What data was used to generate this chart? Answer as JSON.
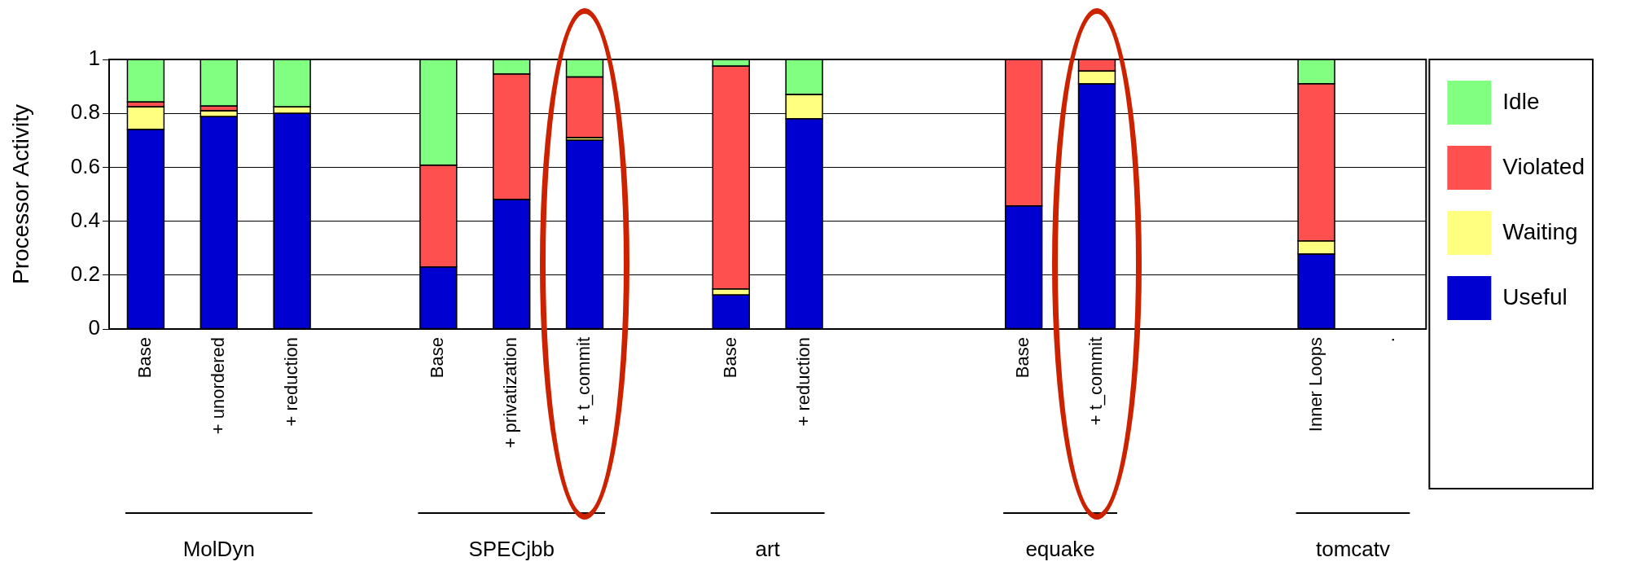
{
  "chart_data": {
    "type": "bar",
    "stacked": true,
    "ylabel": "Processor Activity",
    "categories": [
      "Base",
      "+ unordered",
      "+ reduction",
      null,
      "Base",
      "+ privatization",
      "+ t_commit",
      null,
      "Base",
      "+ reduction",
      null,
      null,
      "Base",
      "+ t_commit",
      null,
      null,
      "Inner Loops",
      "."
    ],
    "series": [
      {
        "name": "Useful",
        "color": "#0000d0",
        "values": [
          0.74,
          0.788,
          0.8,
          null,
          0.23,
          0.48,
          0.7,
          null,
          0.126,
          0.78,
          null,
          null,
          0.457,
          0.909,
          null,
          null,
          0.278,
          null
        ]
      },
      {
        "name": "Waiting",
        "color": "#ffff80",
        "values": [
          0.084,
          0.022,
          0.024,
          null,
          0,
          0,
          0.01,
          null,
          0.023,
          0.09,
          null,
          null,
          0,
          0.048,
          null,
          null,
          0.049,
          null
        ]
      },
      {
        "name": "Violated",
        "color": "#ff5050",
        "values": [
          0.018,
          0.017,
          0,
          null,
          0.378,
          0.466,
          0.225,
          null,
          0.826,
          0,
          null,
          null,
          0.543,
          0.043,
          null,
          null,
          0.583,
          null
        ]
      },
      {
        "name": "Idle",
        "color": "#80ff80",
        "values": [
          0.158,
          0.173,
          0.176,
          null,
          0.392,
          0.054,
          0.065,
          null,
          0.025,
          0.13,
          null,
          null,
          0,
          0,
          null,
          null,
          0.09,
          null
        ]
      }
    ],
    "ylim": [
      0,
      1
    ],
    "yticks": [
      0,
      0.2,
      0.4,
      0.6,
      0.8,
      1
    ],
    "grid": "y",
    "legend": "right",
    "annotations": [
      "MolDyn",
      "SPECjbb",
      "art",
      "equake",
      "tomcatv"
    ]
  }
}
